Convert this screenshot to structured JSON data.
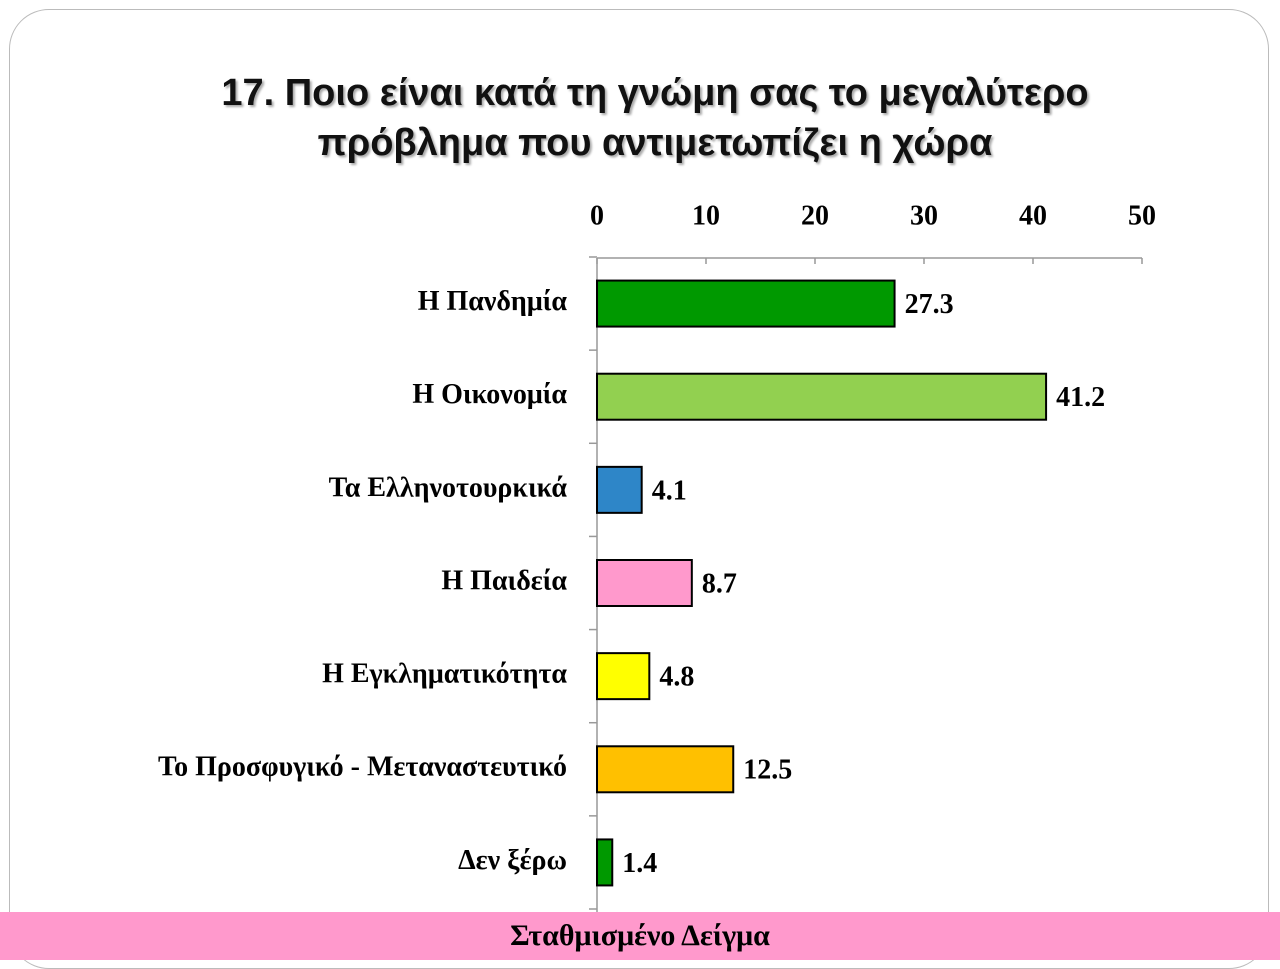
{
  "chart_data": {
    "type": "bar",
    "orientation": "horizontal",
    "title": "17. Ποιο είναι κατά τη γνώμη σας το μεγαλύτερο πρόβλημα που αντιμετωπίζει η χώρα",
    "categories": [
      "Η Πανδημία",
      "Η Οικονομία",
      "Τα Ελληνοτουρκικά",
      "Η Παιδεία",
      "Η Εγκληματικότητα",
      "Το Προσφυγικό - Μεταναστευτικό",
      "Δεν ξέρω"
    ],
    "values": [
      27.3,
      41.2,
      4.1,
      8.7,
      4.8,
      12.5,
      1.4
    ],
    "colors": [
      "#009900",
      "#92d050",
      "#2e86c8",
      "#ff99cc",
      "#ffff00",
      "#ffc000",
      "#009900"
    ],
    "xlim": [
      0,
      50
    ],
    "xticks": [
      0,
      10,
      20,
      30,
      40,
      50
    ],
    "footer": "Σταθμισμένο Δείγμα"
  }
}
